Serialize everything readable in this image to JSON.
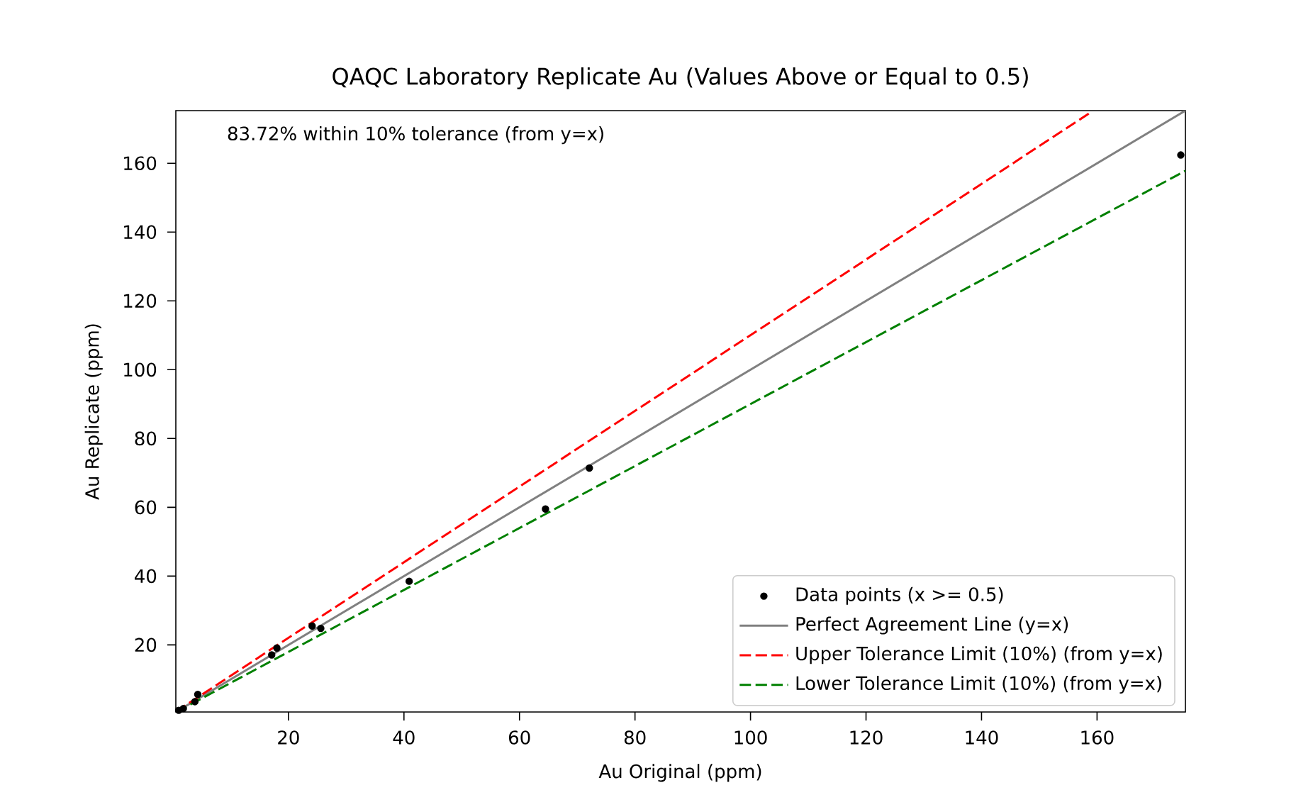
{
  "chart_data": {
    "type": "scatter",
    "title": "QAQC Laboratory Replicate Au (Values Above or Equal to 0.5)",
    "xlabel": "Au Original (ppm)",
    "ylabel": "Au Replicate (ppm)",
    "annotations": [
      "83.72% within 10% tolerance (from y=x)"
    ],
    "xlim": [
      0.5,
      175.3
    ],
    "ylim": [
      0.5,
      175.3
    ],
    "xticks": [
      20,
      40,
      60,
      80,
      100,
      120,
      140,
      160
    ],
    "yticks": [
      20,
      40,
      60,
      80,
      100,
      120,
      140,
      160
    ],
    "grid": false,
    "legend": "bottom right",
    "series": [
      {
        "name": "Data points (x >= 0.5)",
        "marker": "circle",
        "color": "#000000",
        "x": [
          1.0,
          1.8,
          3.8,
          4.3,
          17.1,
          18.0,
          24.1,
          25.6,
          40.9,
          64.5,
          72.1,
          174.5
        ],
        "values": [
          1.0,
          1.5,
          3.5,
          5.6,
          17.1,
          19.1,
          25.5,
          24.8,
          38.5,
          59.5,
          71.4,
          162.4
        ]
      },
      {
        "name": "Perfect Agreement Line (y=x)",
        "type": "line",
        "line_style": "solid",
        "color": "#808080",
        "x": [
          0.5,
          175.3
        ],
        "values": [
          0.5,
          175.3
        ]
      },
      {
        "name": "Upper Tolerance Limit (10%) (from y=x)",
        "type": "line",
        "line_style": "dashed",
        "color": "#ff0000",
        "x": [
          0.5,
          159
        ],
        "values": [
          0.6,
          174.9
        ]
      },
      {
        "name": "Lower Tolerance Limit (10%) (from y=x)",
        "type": "line",
        "line_style": "dashed",
        "color": "#008000",
        "x": [
          0.6,
          175.3
        ],
        "values": [
          0.5,
          157.8
        ]
      }
    ]
  }
}
